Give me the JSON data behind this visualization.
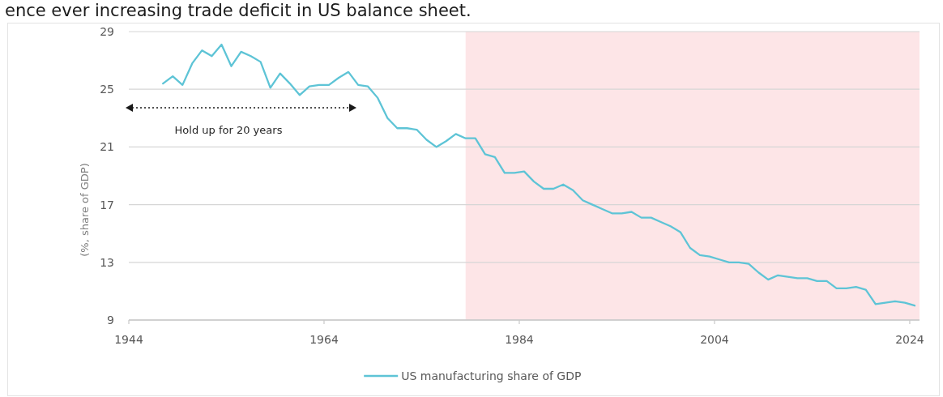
{
  "chart_data": {
    "type": "line",
    "ylabel": "(%, share of GDP)",
    "annotations": [
      "ence ever increasing trade deficit in US balance sheet.",
      "Hold up for 20 years"
    ],
    "x": [
      1947.5,
      1948.5,
      1949.5,
      1950.5,
      1951.5,
      1952.5,
      1953.5,
      1954.5,
      1955.5,
      1956.5,
      1957.5,
      1958.5,
      1959.5,
      1960.5,
      1961.5,
      1962.5,
      1963.5,
      1964.5,
      1965.5,
      1966.5,
      1967.5,
      1968.5,
      1969.5,
      1970.5,
      1971.5,
      1972.5,
      1973.5,
      1974.5,
      1975.5,
      1976.5,
      1977.5,
      1978.5,
      1979.5,
      1980.5,
      1981.5,
      1982.5,
      1983.5,
      1984.5,
      1985.5,
      1986.5,
      1987.5,
      1988.5,
      1989.5,
      1990.5,
      1991.5,
      1992.5,
      1993.5,
      1994.5,
      1995.5,
      1996.5,
      1997.5,
      1998.5,
      1999.5,
      2000.5,
      2001.5,
      2002.5,
      2003.5,
      2004.5,
      2005.5,
      2006.5,
      2007.5,
      2008.5,
      2009.5,
      2010.5,
      2011.5,
      2012.5,
      2013.5,
      2014.5,
      2015.5,
      2016.5,
      2017.5,
      2018.5,
      2019.5,
      2020.5,
      2021.5,
      2022.5,
      2023.5,
      2024.5
    ],
    "series": [
      {
        "name": "US manufacturing share of GDP",
        "color": "#5ec4d6",
        "values": [
          25.4,
          25.9,
          25.3,
          26.8,
          27.7,
          27.3,
          28.1,
          26.6,
          27.6,
          27.3,
          26.9,
          25.1,
          26.1,
          25.4,
          24.6,
          25.2,
          25.3,
          25.3,
          25.8,
          26.2,
          25.3,
          25.2,
          24.4,
          23.0,
          22.3,
          22.3,
          22.2,
          21.5,
          21.0,
          21.4,
          21.9,
          21.6,
          21.6,
          20.5,
          20.3,
          19.2,
          19.2,
          19.3,
          18.6,
          18.1,
          18.1,
          18.4,
          18.0,
          17.3,
          17.0,
          16.7,
          16.4,
          16.4,
          16.5,
          16.1,
          16.1,
          15.8,
          15.5,
          15.1,
          14.0,
          13.5,
          13.4,
          13.2,
          13.0,
          13.0,
          12.9,
          12.3,
          11.8,
          12.1,
          12.0,
          11.9,
          11.9,
          11.7,
          11.7,
          11.2,
          11.2,
          11.3,
          11.1,
          10.1,
          10.2,
          10.3,
          10.2,
          10.0
        ]
      }
    ],
    "xlim": [
      1944,
      2025
    ],
    "xticks": [
      1944,
      1964,
      1984,
      2004,
      2024
    ],
    "ylim": [
      9,
      29
    ],
    "yticks": [
      9,
      13,
      17,
      21,
      25,
      29
    ],
    "grid": "y",
    "legend": "bottom",
    "bands": [
      {
        "axis": "x",
        "from": 1978.5,
        "to": 2025,
        "color": "#fde5e7"
      }
    ]
  }
}
